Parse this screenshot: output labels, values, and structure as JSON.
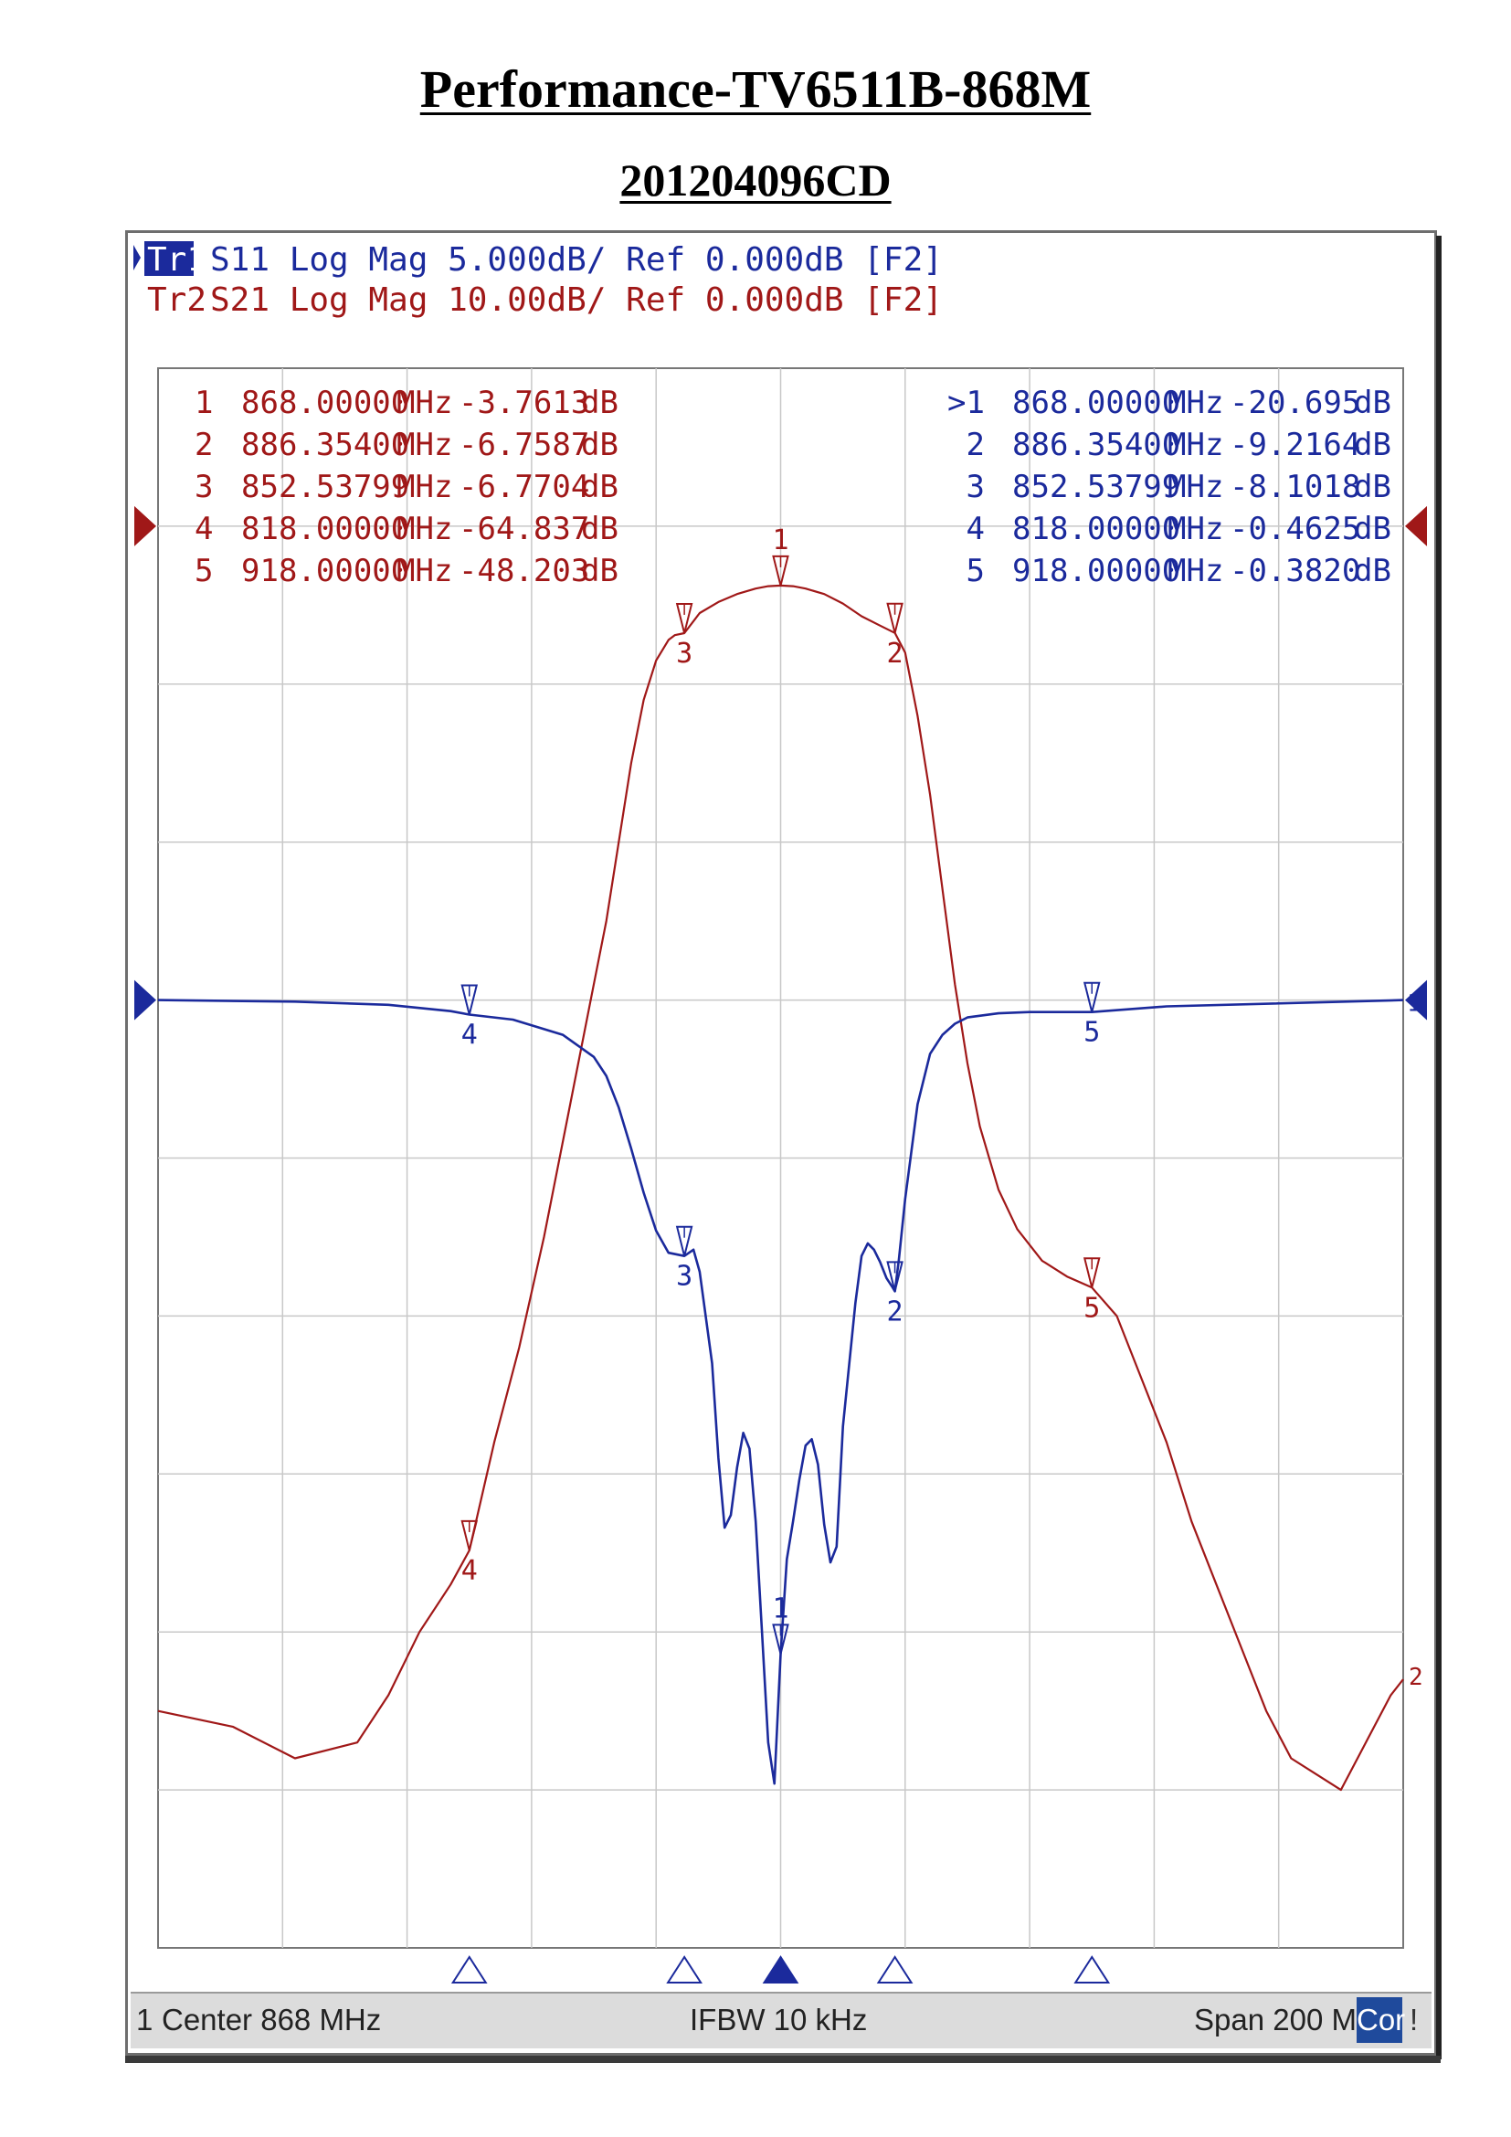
{
  "document": {
    "title": "Performance-TV6511B-868M",
    "subtitle": "201204096CD"
  },
  "traces": [
    {
      "tag": "Tr1",
      "rest": "S11 Log Mag 5.000dB/ Ref 0.000dB [F2]",
      "color": "#1b2a9c",
      "active": true
    },
    {
      "tag": "Tr2",
      "rest": "S21 Log Mag 10.00dB/ Ref 0.000dB [F2]",
      "color": "#a01818",
      "active": false
    }
  ],
  "markers_s21": [
    {
      "id": "1",
      "freq": "868.00000",
      "unit": "MHz",
      "value": "-3.7613",
      "db": "dB"
    },
    {
      "id": "2",
      "freq": "886.35400",
      "unit": "MHz",
      "value": "-6.7587",
      "db": "dB"
    },
    {
      "id": "3",
      "freq": "852.53799",
      "unit": "MHz",
      "value": "-6.7704",
      "db": "dB"
    },
    {
      "id": "4",
      "freq": "818.00000",
      "unit": "MHz",
      "value": "-64.837",
      "db": "dB"
    },
    {
      "id": "5",
      "freq": "918.00000",
      "unit": "MHz",
      "value": "-48.203",
      "db": "dB"
    }
  ],
  "markers_s11": [
    {
      "id": ">1",
      "freq": "868.00000",
      "unit": "MHz",
      "value": "-20.695",
      "db": "dB"
    },
    {
      "id": "2",
      "freq": "886.35400",
      "unit": "MHz",
      "value": "-9.2164",
      "db": "dB"
    },
    {
      "id": "3",
      "freq": "852.53799",
      "unit": "MHz",
      "value": "-8.1018",
      "db": "dB"
    },
    {
      "id": "4",
      "freq": "818.00000",
      "unit": "MHz",
      "value": "-0.4625",
      "db": "dB"
    },
    {
      "id": "5",
      "freq": "918.00000",
      "unit": "MHz",
      "value": "-0.3820",
      "db": "dB"
    }
  ],
  "status": {
    "channel": "1",
    "center": "Center 868 MHz",
    "ifbw": "IFBW 10 kHz",
    "span": "Span 200 MHz",
    "cor": "Cor",
    "flag": "!"
  },
  "colors": {
    "s21": "#a01818",
    "s11": "#1b2a9c",
    "grid": "#c8c8c8",
    "frame": "#777777"
  },
  "chart_data": {
    "type": "line",
    "x_range_mhz": [
      768,
      968
    ],
    "x_divisions": 10,
    "y_divisions": 10,
    "grid": true,
    "series": [
      {
        "name": "S21",
        "scale_db_per_div": 10,
        "ref_db": 0,
        "ref_position_div": 9,
        "x_mhz": [
          768,
          780,
          790,
          800,
          805,
          810,
          815,
          818,
          822,
          826,
          830,
          834,
          838,
          840,
          842,
          844,
          846,
          848,
          850,
          851,
          852.54,
          855,
          858,
          861,
          864,
          866,
          868,
          870,
          872,
          875,
          878,
          881,
          884,
          886.354,
          888,
          890,
          892,
          894,
          896,
          898,
          900,
          903,
          906,
          910,
          914,
          918,
          922,
          926,
          930,
          934,
          938,
          942,
          946,
          950,
          954,
          958,
          962,
          966,
          968
        ],
        "y_db": [
          -75,
          -76,
          -78,
          -77,
          -74,
          -70,
          -67,
          -64.837,
          -58,
          -52,
          -45,
          -37,
          -29,
          -25,
          -20,
          -15,
          -11,
          -8.5,
          -7.2,
          -6.9,
          -6.77,
          -5.5,
          -4.8,
          -4.3,
          -3.95,
          -3.8,
          -3.76,
          -3.8,
          -3.95,
          -4.3,
          -4.9,
          -5.7,
          -6.3,
          -6.76,
          -8,
          -12,
          -17,
          -23,
          -29,
          -34,
          -38,
          -42,
          -44.5,
          -46.5,
          -47.5,
          -48.2,
          -50,
          -54,
          -58,
          -63,
          -67,
          -71,
          -75,
          -78,
          -79,
          -80,
          -77,
          -74,
          -73
        ]
      },
      {
        "name": "S11",
        "scale_db_per_div": 5,
        "ref_db": 0,
        "ref_position_div": 6,
        "x_mhz": [
          768,
          790,
          805,
          815,
          818,
          825,
          833,
          838,
          840,
          842,
          844,
          846,
          848,
          850,
          852.54,
          854,
          855,
          857,
          858,
          859,
          860,
          861,
          862,
          863,
          864,
          865,
          866,
          867,
          868,
          869,
          870,
          871,
          872,
          873,
          874,
          875,
          876,
          877,
          878,
          880,
          881,
          882,
          883,
          884,
          885,
          886,
          886.354,
          887,
          888,
          890,
          892,
          894,
          896,
          898,
          903,
          908,
          918,
          930,
          968
        ],
        "y_db": [
          0,
          -0.05,
          -0.15,
          -0.35,
          -0.46,
          -0.62,
          -1.1,
          -1.8,
          -2.4,
          -3.4,
          -4.7,
          -6.1,
          -7.3,
          -8,
          -8.1,
          -7.9,
          -8.6,
          -11.5,
          -14.5,
          -16.7,
          -16.3,
          -14.8,
          -13.7,
          -14.2,
          -16.5,
          -20,
          -23.5,
          -24.8,
          -20.7,
          -17.7,
          -16.5,
          -15.2,
          -14.1,
          -13.9,
          -14.7,
          -16.6,
          -17.8,
          -17.3,
          -13.5,
          -9.6,
          -8.1,
          -7.7,
          -7.9,
          -8.3,
          -8.8,
          -9.1,
          -9.22,
          -8.2,
          -6.3,
          -3.3,
          -1.7,
          -1.1,
          -0.75,
          -0.55,
          -0.42,
          -0.38,
          -0.38,
          -0.2,
          0
        ]
      }
    ]
  }
}
